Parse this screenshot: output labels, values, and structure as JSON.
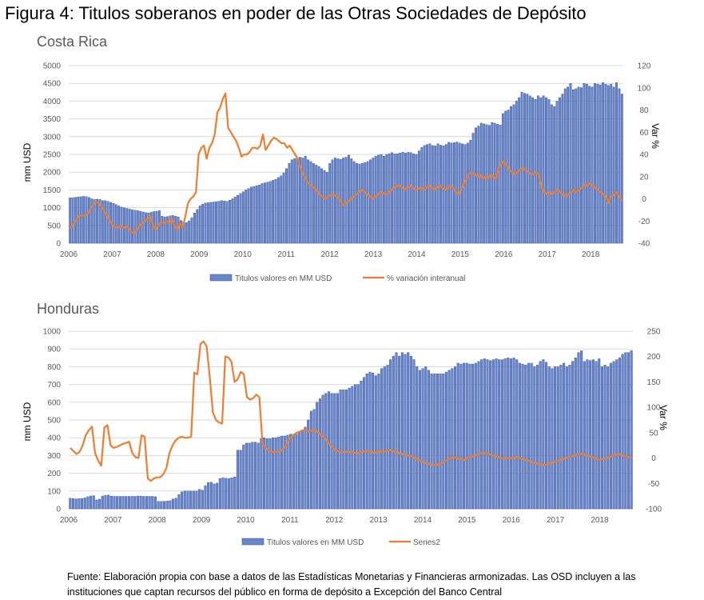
{
  "figure_title": "Figura 4: Titulos soberanos en poder de las Otras Sociedades de Depósito",
  "footnote": {
    "line1": "Fuente: Elaboración propia con base a datos de las  Estadísticas Monetarias y Financieras armonizadas. Las OSD incluyen a las",
    "line2": "instituciones que captan recursos del público en forma de depósito a Excepción del Banco Central"
  },
  "colors": {
    "bar_fill": "#6a86c8",
    "bar_stroke": "#2f4f9f",
    "line": "#ed7d31",
    "grid": "#d9d9d9",
    "text": "#595959"
  },
  "chart_data": [
    {
      "type": "bar+line",
      "title": "Costa Rica",
      "ylabel": "mm USD",
      "y2label": "Var %",
      "ylim": [
        0,
        5000
      ],
      "yticks": [
        0,
        500,
        1000,
        1500,
        2000,
        2500,
        3000,
        3500,
        4000,
        4500,
        5000
      ],
      "y2lim": [
        -40,
        120
      ],
      "y2ticks": [
        -40,
        -20,
        0,
        20,
        40,
        60,
        80,
        100,
        120
      ],
      "xlim": [
        2006.0,
        2018.75
      ],
      "xticks": [
        "2006",
        "2007",
        "2008",
        "2009",
        "2010",
        "2011",
        "2012",
        "2013",
        "2014",
        "2015",
        "2016",
        "2017",
        "2018"
      ],
      "x_start": 2006.0,
      "bar_series_name": "Titulos valores en MM USD",
      "line_series_name": "% variación interanual",
      "bars": [
        1280,
        1280,
        1290,
        1300,
        1310,
        1320,
        1310,
        1290,
        1250,
        1230,
        1240,
        1230,
        1200,
        1200,
        1180,
        1150,
        1120,
        1090,
        1050,
        1020,
        1000,
        980,
        960,
        940,
        930,
        920,
        900,
        880,
        860,
        850,
        870,
        890,
        900,
        920,
        760,
        740,
        750,
        770,
        780,
        760,
        740,
        640,
        600,
        580,
        630,
        720,
        850,
        950,
        1050,
        1100,
        1130,
        1140,
        1150,
        1160,
        1170,
        1180,
        1200,
        1190,
        1180,
        1210,
        1250,
        1300,
        1350,
        1400,
        1450,
        1500,
        1540,
        1580,
        1600,
        1620,
        1640,
        1680,
        1700,
        1720,
        1740,
        1770,
        1800,
        1850,
        1900,
        1980,
        2100,
        2250,
        2350,
        2380,
        2400,
        2420,
        2400,
        2450,
        2350,
        2300,
        2250,
        2200,
        2160,
        2100,
        2050,
        2000,
        2250,
        2350,
        2400,
        2380,
        2360,
        2400,
        2420,
        2480,
        2380,
        2300,
        2250,
        2230,
        2250,
        2270,
        2300,
        2350,
        2400,
        2450,
        2480,
        2500,
        2450,
        2500,
        2520,
        2550,
        2520,
        2520,
        2540,
        2560,
        2540,
        2560,
        2550,
        2520,
        2500,
        2600,
        2700,
        2750,
        2780,
        2800,
        2750,
        2740,
        2800,
        2760,
        2740,
        2780,
        2840,
        2820,
        2830,
        2850,
        2820,
        2800,
        2780,
        2820,
        2900,
        3100,
        3250,
        3300,
        3380,
        3360,
        3340,
        3320,
        3400,
        3380,
        3350,
        3330,
        3650,
        3720,
        3750,
        3850,
        3900,
        4000,
        4100,
        4250,
        4220,
        4200,
        4150,
        4100,
        4050,
        4150,
        4100,
        4150,
        4100,
        4050,
        3900,
        3850,
        4000,
        4100,
        4200,
        4350,
        4400,
        4500,
        4320,
        4350,
        4400,
        4380,
        4500,
        4480,
        4420,
        4400,
        4500,
        4480,
        4460,
        4520,
        4480,
        4440,
        4480,
        4400,
        4520,
        4350,
        4200
      ],
      "line": [
        -27,
        -24,
        -20,
        -16,
        -15,
        -15,
        -15,
        -12,
        -8,
        -4,
        -3,
        -5,
        -8,
        -12,
        -16,
        -20,
        -24,
        -26,
        -26,
        -24,
        -26,
        -25,
        -27,
        -30,
        -31,
        -28,
        -24,
        -22,
        -20,
        -18,
        -16,
        -24,
        -28,
        -24,
        -21,
        -22,
        -20,
        -22,
        -18,
        -24,
        -28,
        -22,
        -26,
        -16,
        -4,
        0,
        2,
        6,
        40,
        46,
        48,
        36,
        46,
        50,
        58,
        78,
        82,
        90,
        95,
        64,
        60,
        56,
        52,
        46,
        38,
        40,
        40,
        42,
        46,
        46,
        45,
        48,
        58,
        44,
        48,
        52,
        55,
        54,
        52,
        50,
        50,
        46,
        48,
        44,
        40,
        36,
        28,
        22,
        18,
        14,
        12,
        10,
        8,
        4,
        2,
        0,
        1,
        3,
        4,
        3,
        2,
        -2,
        -6,
        -4,
        -2,
        0,
        2,
        4,
        7,
        8,
        6,
        4,
        2,
        0,
        2,
        4,
        6,
        5,
        4,
        6,
        8,
        10,
        12,
        12,
        10,
        8,
        10,
        12,
        10,
        8,
        9,
        10,
        8,
        10,
        12,
        10,
        8,
        10,
        12,
        10,
        8,
        10,
        12,
        10,
        6,
        4,
        8,
        14,
        18,
        22,
        24,
        22,
        20,
        22,
        18,
        20,
        18,
        22,
        20,
        18,
        28,
        32,
        34,
        30,
        26,
        24,
        22,
        24,
        26,
        28,
        26,
        24,
        22,
        22,
        24,
        22,
        10,
        6,
        4,
        6,
        4,
        6,
        8,
        6,
        4,
        2,
        4,
        6,
        8,
        6,
        8,
        10,
        12,
        12,
        14,
        12,
        10,
        8,
        6,
        4,
        2,
        -4,
        2,
        4,
        6,
        2,
        -2
      ]
    },
    {
      "type": "bar+line",
      "title": "Honduras",
      "ylabel": "mm USD",
      "y2label": "Var %",
      "ylim": [
        0,
        1000
      ],
      "yticks": [
        0,
        100,
        200,
        300,
        400,
        500,
        600,
        700,
        800,
        900,
        1000
      ],
      "y2lim": [
        -100,
        250
      ],
      "y2ticks": [
        -100,
        -50,
        0,
        50,
        100,
        150,
        200,
        250
      ],
      "xlim": [
        2006.0,
        2018.75
      ],
      "xticks": [
        "2006",
        "2007",
        "2008",
        "2009",
        "2010",
        "2011",
        "2012",
        "2013",
        "2014",
        "2015",
        "2016",
        "2017",
        "2018"
      ],
      "x_start": 2006.0,
      "bar_series_name": "Titulos valores en MM USD",
      "line_series_name": "Series2",
      "bars": [
        60,
        58,
        56,
        57,
        58,
        62,
        68,
        72,
        74,
        50,
        54,
        72,
        76,
        77,
        72,
        70,
        70,
        70,
        70,
        70,
        70,
        70,
        70,
        72,
        72,
        70,
        70,
        70,
        70,
        68,
        42,
        42,
        42,
        44,
        46,
        55,
        60,
        80,
        95,
        100,
        100,
        100,
        100,
        100,
        110,
        105,
        130,
        148,
        150,
        140,
        145,
        170,
        175,
        172,
        170,
        175,
        180,
        330,
        330,
        360,
        370,
        370,
        375,
        375,
        370,
        395,
        400,
        395,
        395,
        400,
        400,
        405,
        410,
        410,
        415,
        420,
        420,
        420,
        430,
        440,
        460,
        500,
        550,
        560,
        600,
        620,
        640,
        650,
        660,
        650,
        650,
        650,
        670,
        670,
        670,
        680,
        690,
        700,
        700,
        720,
        740,
        760,
        770,
        765,
        750,
        760,
        790,
        800,
        810,
        840,
        860,
        880,
        860,
        880,
        870,
        880,
        860,
        840,
        800,
        780,
        790,
        800,
        780,
        760,
        760,
        760,
        760,
        760,
        770,
        780,
        790,
        800,
        820,
        815,
        820,
        820,
        815,
        815,
        820,
        830,
        840,
        845,
        840,
        835,
        840,
        845,
        840,
        840,
        845,
        850,
        845,
        850,
        840,
        820,
        815,
        810,
        820,
        820,
        800,
        810,
        830,
        840,
        825,
        800,
        790,
        800,
        800,
        810,
        820,
        800,
        810,
        830,
        850,
        880,
        890,
        830,
        840,
        835,
        840,
        830,
        845,
        800,
        810,
        800,
        820,
        830,
        840,
        850,
        870,
        880,
        880,
        890
      ],
      "line": [
        20,
        14,
        8,
        12,
        25,
        45,
        55,
        62,
        10,
        -5,
        -15,
        60,
        65,
        25,
        20,
        22,
        25,
        28,
        30,
        32,
        10,
        2,
        0,
        45,
        42,
        -40,
        -45,
        -40,
        -38,
        -38,
        -32,
        -20,
        10,
        25,
        35,
        40,
        42,
        40,
        40,
        42,
        168,
        165,
        225,
        230,
        220,
        160,
        90,
        75,
        70,
        68,
        200,
        198,
        190,
        150,
        155,
        170,
        165,
        120,
        115,
        118,
        125,
        120,
        30,
        20,
        15,
        12,
        12,
        12,
        15,
        20,
        30,
        40,
        45,
        50,
        52,
        55,
        55,
        52,
        55,
        56,
        50,
        45,
        40,
        32,
        25,
        18,
        14,
        12,
        12,
        12,
        12,
        12,
        10,
        10,
        12,
        14,
        14,
        12,
        10,
        12,
        14,
        12,
        14,
        16,
        14,
        12,
        10,
        8,
        6,
        5,
        4,
        0,
        -2,
        -5,
        -8,
        -10,
        -12,
        -14,
        -14,
        -12,
        -10,
        -6,
        -2,
        0,
        2,
        0,
        -2,
        -4,
        0,
        2,
        4,
        6,
        8,
        10,
        10,
        8,
        6,
        4,
        2,
        0,
        0,
        0,
        0,
        0,
        2,
        0,
        -2,
        -4,
        -6,
        -8,
        -10,
        -12,
        -12,
        -14,
        -12,
        -10,
        -8,
        -6,
        -4,
        -2,
        0,
        2,
        4,
        6,
        8,
        8,
        6,
        4,
        2,
        0,
        -2,
        -4,
        -2,
        0,
        2,
        4,
        6,
        8,
        6,
        4,
        2,
        0
      ]
    }
  ]
}
